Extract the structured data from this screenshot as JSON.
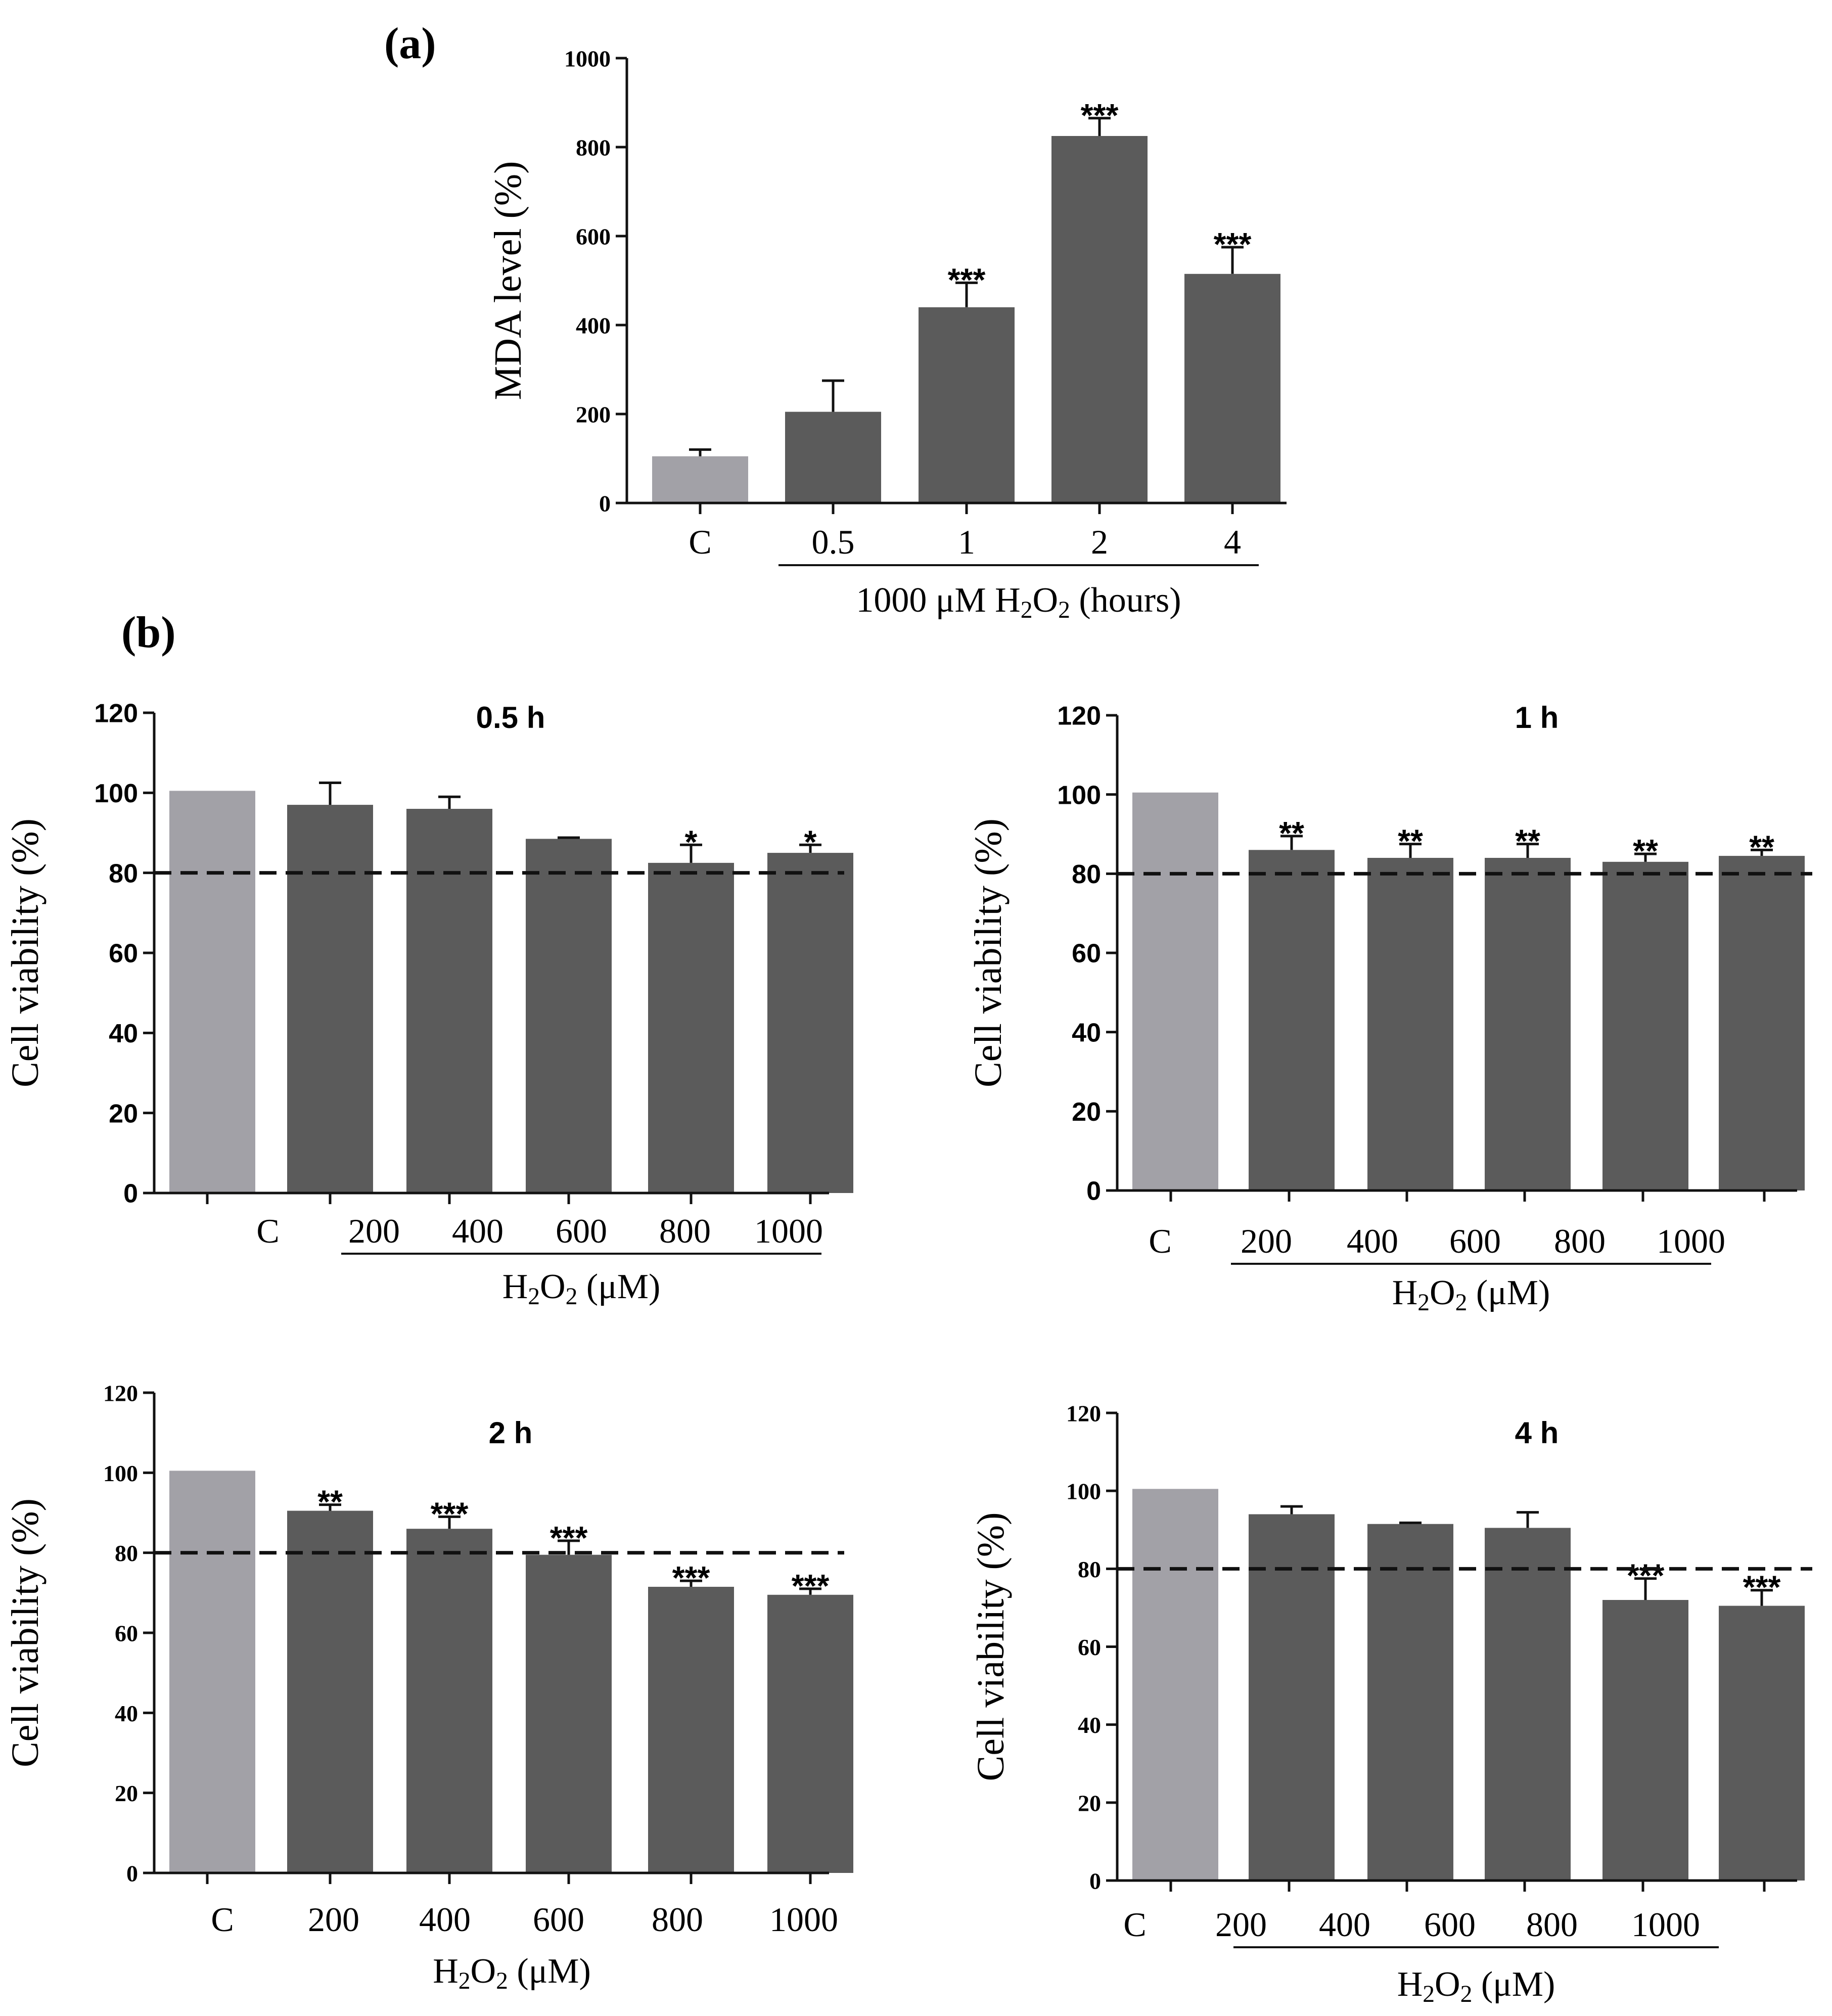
{
  "figure": {
    "panel_a_label": "(a)",
    "panel_b_label": "(b)"
  },
  "colors": {
    "control_bar": "#a2a1a7",
    "treatment_bar": "#5b5b5b",
    "axis": "#111111",
    "dash": "#111111"
  },
  "chart_data": [
    {
      "id": "mda",
      "type": "bar",
      "title": "",
      "ylabel": "MDA level (%)",
      "xlabel": "",
      "group_label": {
        "pre": "1000 μM H",
        "sub1": "2",
        "mid": "O",
        "sub2": "2",
        "post": " (hours)"
      },
      "categories": [
        "C",
        "0.5",
        "1",
        "2",
        "4"
      ],
      "values": [
        105,
        205,
        440,
        825,
        515
      ],
      "errors": [
        15,
        70,
        55,
        40,
        60
      ],
      "significance": [
        "",
        "",
        "***",
        "***",
        "***"
      ],
      "ylim": [
        0,
        1000
      ],
      "yticks": [
        "0",
        "200",
        "400",
        "600",
        "800",
        "1000"
      ],
      "reference_line": null
    },
    {
      "id": "viability_0_5h",
      "type": "bar",
      "title": "0.5 h",
      "ylabel": "Cell viability (%)",
      "group_label": {
        "pre": "H",
        "sub1": "2",
        "mid": "O",
        "sub2": "2",
        "post": " (μM)"
      },
      "categories": [
        "C",
        "200",
        "400",
        "600",
        "800",
        "1000"
      ],
      "values": [
        100.5,
        97,
        96,
        88.5,
        82.5,
        85
      ],
      "errors": [
        0,
        5.5,
        3,
        0.3,
        4.5,
        2
      ],
      "significance": [
        "",
        "",
        "",
        "",
        "*",
        "*"
      ],
      "ylim": [
        0,
        120
      ],
      "yticks": [
        "0",
        "20",
        "40",
        "60",
        "80",
        "100",
        "120"
      ],
      "reference_line": 80
    },
    {
      "id": "viability_1h",
      "type": "bar",
      "title": "1 h",
      "ylabel": "Cell viability (%)",
      "group_label": {
        "pre": "H",
        "sub1": "2",
        "mid": "O",
        "sub2": "2",
        "post": " (μM)"
      },
      "categories": [
        "C",
        "200",
        "400",
        "600",
        "800",
        "1000"
      ],
      "values": [
        100.5,
        86,
        84,
        84,
        83,
        84.5
      ],
      "errors": [
        0,
        3.5,
        3.5,
        3.5,
        2,
        1.5
      ],
      "significance": [
        "",
        "**",
        "**",
        "**",
        "**",
        "**"
      ],
      "ylim": [
        0,
        120
      ],
      "yticks": [
        "0",
        "20",
        "40",
        "60",
        "80",
        "100",
        "120"
      ],
      "reference_line": 80
    },
    {
      "id": "viability_2h",
      "type": "bar",
      "title": "2 h",
      "ylabel": "Cell viability (%)",
      "group_label": {
        "pre": "H",
        "sub1": "2",
        "mid": "O",
        "sub2": "2",
        "post": " (μM)"
      },
      "categories": [
        "C",
        "200",
        "400",
        "600",
        "800",
        "1000"
      ],
      "values": [
        100.5,
        90.5,
        86,
        79.5,
        71.5,
        69.5
      ],
      "errors": [
        0,
        1.5,
        3,
        3.5,
        1.5,
        1.5
      ],
      "significance": [
        "",
        "**",
        "***",
        "***",
        "***",
        "***"
      ],
      "ylim": [
        0,
        120
      ],
      "yticks": [
        "0",
        "20",
        "40",
        "60",
        "80",
        "100",
        "120"
      ],
      "reference_line": 80
    },
    {
      "id": "viability_4h",
      "type": "bar",
      "title": "4 h",
      "ylabel": "Cell viability (%)",
      "group_label": {
        "pre": "H",
        "sub1": "2",
        "mid": "O",
        "sub2": "2",
        "post": " (μM)"
      },
      "categories": [
        "C",
        "200",
        "400",
        "600",
        "800",
        "1000"
      ],
      "values": [
        100.5,
        94,
        91.5,
        90.5,
        72,
        70.5
      ],
      "errors": [
        0,
        2,
        0.3,
        4,
        5.5,
        4
      ],
      "significance": [
        "",
        "",
        "",
        "",
        "***",
        "***"
      ],
      "ylim": [
        0,
        120
      ],
      "yticks": [
        "0",
        "20",
        "40",
        "60",
        "80",
        "100",
        "120"
      ],
      "reference_line": 80
    }
  ]
}
